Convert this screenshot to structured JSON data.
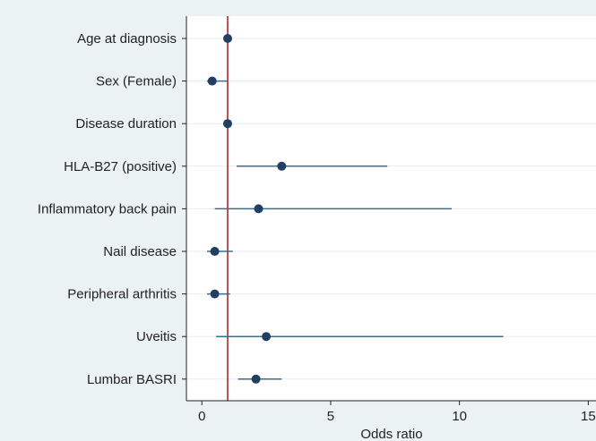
{
  "chart_data": {
    "type": "forest",
    "xlabel": "Odds ratio",
    "xlim": [
      -0.6,
      15.3
    ],
    "xticks": [
      0,
      5,
      10,
      15
    ],
    "reference_line": 1,
    "grid": true,
    "rows": [
      {
        "label": "Age at diagnosis",
        "or": 1.0,
        "lo": 0.97,
        "hi": 1.03
      },
      {
        "label": "Sex (Female)",
        "or": 0.4,
        "lo": 0.2,
        "hi": 1.0
      },
      {
        "label": "Disease duration",
        "or": 1.0,
        "lo": 0.97,
        "hi": 1.03
      },
      {
        "label": "HLA-B27 (positive)",
        "or": 3.1,
        "lo": 1.35,
        "hi": 7.2
      },
      {
        "label": "Inflammatory back pain",
        "or": 2.2,
        "lo": 0.5,
        "hi": 9.7
      },
      {
        "label": "Nail disease",
        "or": 0.5,
        "lo": 0.2,
        "hi": 1.2
      },
      {
        "label": "Peripheral arthritis",
        "or": 0.5,
        "lo": 0.2,
        "hi": 1.1
      },
      {
        "label": "Uveitis",
        "or": 2.5,
        "lo": 0.55,
        "hi": 11.7
      },
      {
        "label": "Lumbar BASRI",
        "or": 2.1,
        "lo": 1.4,
        "hi": 3.1
      }
    ],
    "colors": {
      "background": "#eaf2f3",
      "plot": "#ffffff",
      "gridline": "#e6edf0",
      "marker": "#1f3f63",
      "ci_line": "#3d6b8c",
      "reference": "#b0272f"
    }
  }
}
